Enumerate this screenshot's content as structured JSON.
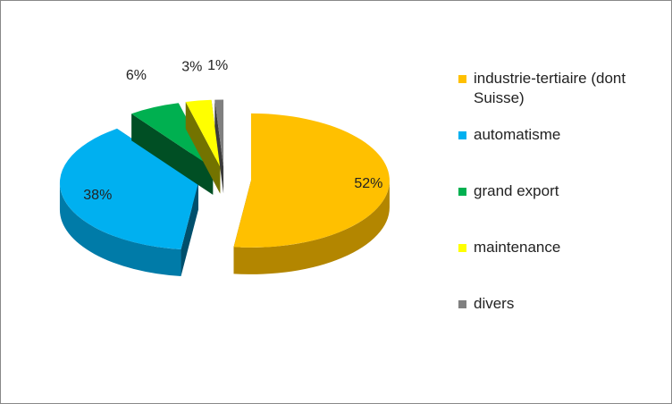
{
  "chart_data": {
    "type": "pie",
    "categories": [
      "industrie-tertiaire (dont Suisse)",
      "automatisme",
      "grand export",
      "maintenance",
      "divers"
    ],
    "values": [
      52,
      38,
      6,
      3,
      1
    ],
    "value_labels": [
      "52%",
      "38%",
      "6%",
      "3%",
      "1%"
    ],
    "colors": [
      "#FFC000",
      "#00B0F0",
      "#00B050",
      "#FFFF00",
      "#808080"
    ],
    "legend": "right"
  }
}
